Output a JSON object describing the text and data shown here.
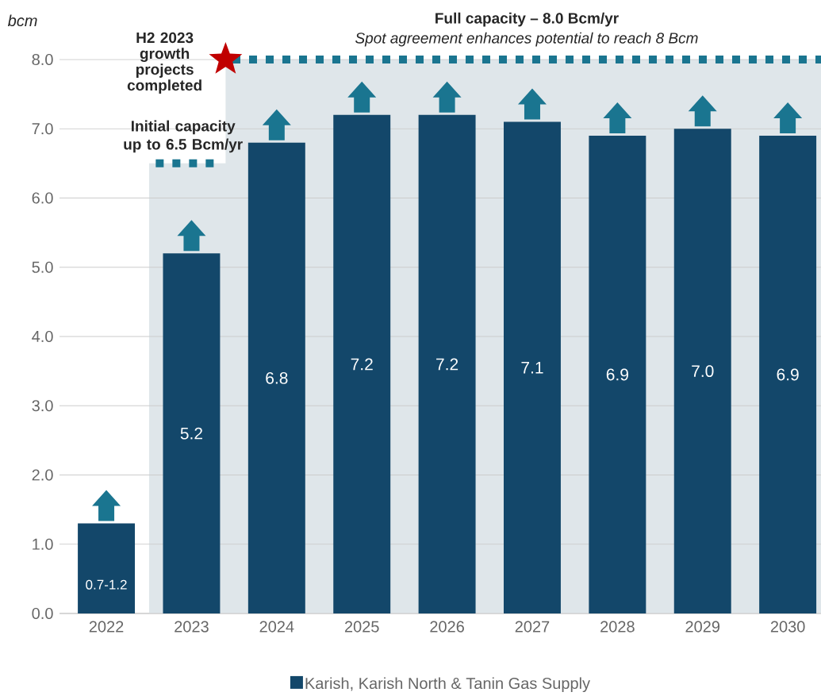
{
  "chart_data": {
    "type": "bar",
    "categories": [
      "2022",
      "2023",
      "2024",
      "2025",
      "2026",
      "2027",
      "2028",
      "2029",
      "2030"
    ],
    "series": [
      {
        "name": "Karish, Karish North & Tanin Gas Supply",
        "color": "#13476a",
        "values": [
          1.3,
          5.2,
          6.8,
          7.2,
          7.2,
          7.1,
          6.9,
          7.0,
          6.9
        ],
        "value_labels": [
          "0.7-1.2",
          "5.2",
          "6.8",
          "7.2",
          "7.2",
          "7.1",
          "6.9",
          "7.0",
          "6.9"
        ]
      }
    ],
    "ylabel": "bcm",
    "ylim": [
      0,
      8.0
    ],
    "yticks": [
      {
        "value": 0,
        "label": "0.0"
      },
      {
        "value": 1,
        "label": "1.0"
      },
      {
        "value": 2,
        "label": "2.0"
      },
      {
        "value": 3,
        "label": "3.0"
      },
      {
        "value": 4,
        "label": "4.0"
      },
      {
        "value": 5,
        "label": "5.0"
      },
      {
        "value": 6,
        "label": "6.0"
      },
      {
        "value": 7,
        "label": "7.0"
      },
      {
        "value": 8,
        "label": "8.0"
      }
    ],
    "grid": "y",
    "legend": "bottom",
    "ref_lines": [
      {
        "axis": "y",
        "value": 6.5,
        "label": "Initial capacity up to 6.5 Bcm/yr",
        "color": "#1a7590",
        "line_style": "dotted"
      },
      {
        "axis": "y",
        "value": 8.0,
        "label": "Full capacity – 8.0 Bcm/yr",
        "color": "#1a7590",
        "line_style": "dotted"
      }
    ],
    "bands": [
      {
        "axis": "x",
        "from": "2023",
        "to": "2030",
        "color": "#dfe6ea"
      }
    ],
    "annotations": [
      "Spot agreement enhances potential to reach 8 Bcm",
      "H2 2023 growth projects completed"
    ]
  }
}
